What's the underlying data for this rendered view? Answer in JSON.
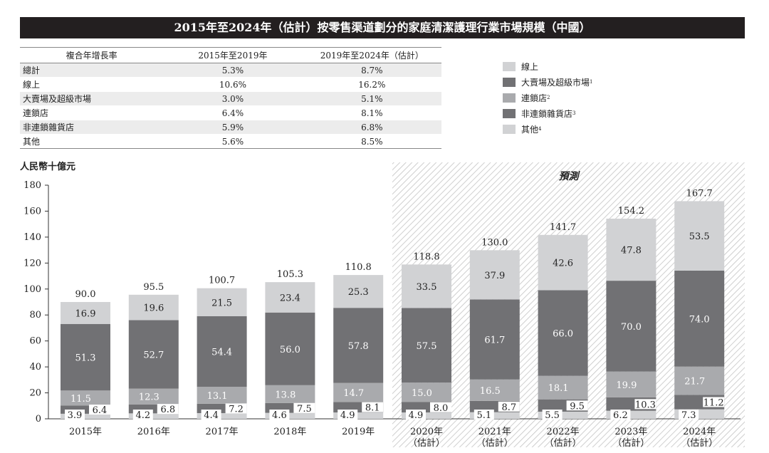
{
  "title": "2015年至2024年（估計）按零售渠道劃分的家庭清潔護理行業市場規模（中國）",
  "cagr_table": {
    "headers": [
      "複合年增長率",
      "2015年至2019年",
      "2019年至2024年（估計）"
    ],
    "rows": [
      {
        "label": "總計",
        "a": "5.3%",
        "b": "8.7%"
      },
      {
        "label": "線上",
        "a": "10.6%",
        "b": "16.2%"
      },
      {
        "label": "大賣場及超級市場",
        "a": "3.0%",
        "b": "5.1%"
      },
      {
        "label": "連鎖店",
        "a": "6.4%",
        "b": "8.1%"
      },
      {
        "label": "非連鎖雜貨店",
        "a": "5.9%",
        "b": "6.8%"
      },
      {
        "label": "其他",
        "a": "5.6%",
        "b": "8.5%"
      }
    ]
  },
  "legend": [
    {
      "name": "線上",
      "note": "",
      "color": "#d1d2d4"
    },
    {
      "name": "大賣場及超級市場",
      "note": "1",
      "color": "#717174"
    },
    {
      "name": "連鎖店",
      "note": "2",
      "color": "#a9aaad"
    },
    {
      "name": "非連鎖雜貨店",
      "note": "3",
      "color": "#717174"
    },
    {
      "name": "其他",
      "note": "4",
      "color": "#d1d2d4"
    }
  ],
  "chart_data": {
    "type": "bar",
    "stacked": true,
    "ylabel": "人民幣十億元",
    "forecast_label": "預測",
    "ylim": [
      0,
      180
    ],
    "yticks": [
      0,
      20,
      40,
      60,
      80,
      100,
      120,
      140,
      160,
      180
    ],
    "categories": [
      "2015年",
      "2016年",
      "2017年",
      "2018年",
      "2019年",
      "2020年",
      "2021年",
      "2022年",
      "2023年",
      "2024年"
    ],
    "category_notes": [
      "",
      "",
      "",
      "",
      "",
      "（估計）",
      "（估計）",
      "（估計）",
      "（估計）",
      "（估計）"
    ],
    "forecast_from_index": 5,
    "totals": [
      "90.0",
      "95.5",
      "100.7",
      "105.3",
      "110.8",
      "118.8",
      "130.0",
      "141.7",
      "154.2",
      "167.7"
    ],
    "series": [
      {
        "name": "其他",
        "color": "#d1d2d4",
        "values": [
          3.9,
          4.2,
          4.4,
          4.6,
          4.9,
          4.9,
          5.1,
          5.5,
          6.2,
          7.3
        ],
        "labels": [
          "3.9",
          "4.2",
          "4.4",
          "4.6",
          "4.9",
          "4.9",
          "5.1",
          "5.5",
          "6.2",
          "7.3"
        ]
      },
      {
        "name": "非連鎖雜貨店",
        "color": "#717174",
        "values": [
          6.4,
          6.8,
          7.2,
          7.5,
          8.1,
          8.0,
          8.7,
          9.5,
          10.3,
          11.2
        ],
        "labels": [
          "6.4",
          "6.8",
          "7.2",
          "7.5",
          "8.1",
          "8.0",
          "8.7",
          "9.5",
          "10.3",
          "11.2"
        ]
      },
      {
        "name": "連鎖店",
        "color": "#a9aaad",
        "values": [
          11.5,
          12.3,
          13.1,
          13.8,
          14.7,
          15.0,
          16.5,
          18.1,
          19.9,
          21.7
        ],
        "labels": [
          "11.5",
          "12.3",
          "13.1",
          "13.8",
          "14.7",
          "15.0",
          "16.5",
          "18.1",
          "19.9",
          "21.7"
        ]
      },
      {
        "name": "大賣場及超級市場",
        "color": "#717174",
        "values": [
          51.3,
          52.7,
          54.4,
          56.0,
          57.8,
          57.5,
          61.7,
          66.0,
          70.0,
          74.0
        ],
        "labels": [
          "51.3",
          "52.7",
          "54.4",
          "56.0",
          "57.8",
          "57.5",
          "61.7",
          "66.0",
          "70.0",
          "74.0"
        ]
      },
      {
        "name": "線上",
        "color": "#d1d2d4",
        "values": [
          16.9,
          19.6,
          21.5,
          23.4,
          25.3,
          33.5,
          37.9,
          42.6,
          47.8,
          53.5
        ],
        "labels": [
          "16.9",
          "19.6",
          "21.5",
          "23.4",
          "25.3",
          "33.5",
          "37.9",
          "42.6",
          "47.8",
          "53.5"
        ]
      }
    ]
  }
}
